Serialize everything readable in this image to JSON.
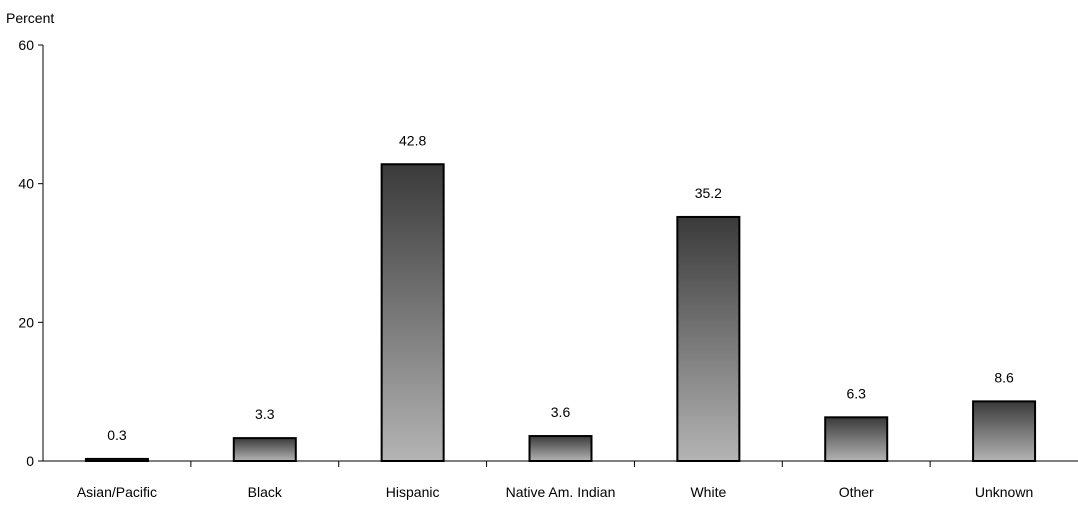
{
  "chart_data": {
    "type": "bar",
    "title": "",
    "xlabel": "",
    "ylabel": "Percent",
    "ylim": [
      0,
      60
    ],
    "yticks": [
      0,
      20,
      40,
      60
    ],
    "grid": false,
    "categories": [
      "Asian/Pacific",
      "Black",
      "Hispanic",
      "Native Am. Indian",
      "White",
      "Other",
      "Unknown"
    ],
    "values": [
      0.3,
      3.3,
      42.8,
      3.6,
      35.2,
      6.3,
      8.6
    ],
    "data_labels": [
      "0.3",
      "3.3",
      "42.8",
      "3.6",
      "35.2",
      "6.3",
      "8.6"
    ],
    "colors": {
      "bar_top": "#3a3a3a",
      "bar_bottom": "#b4b4b4",
      "bar_stroke": "#000000",
      "axis": "#000000"
    }
  }
}
